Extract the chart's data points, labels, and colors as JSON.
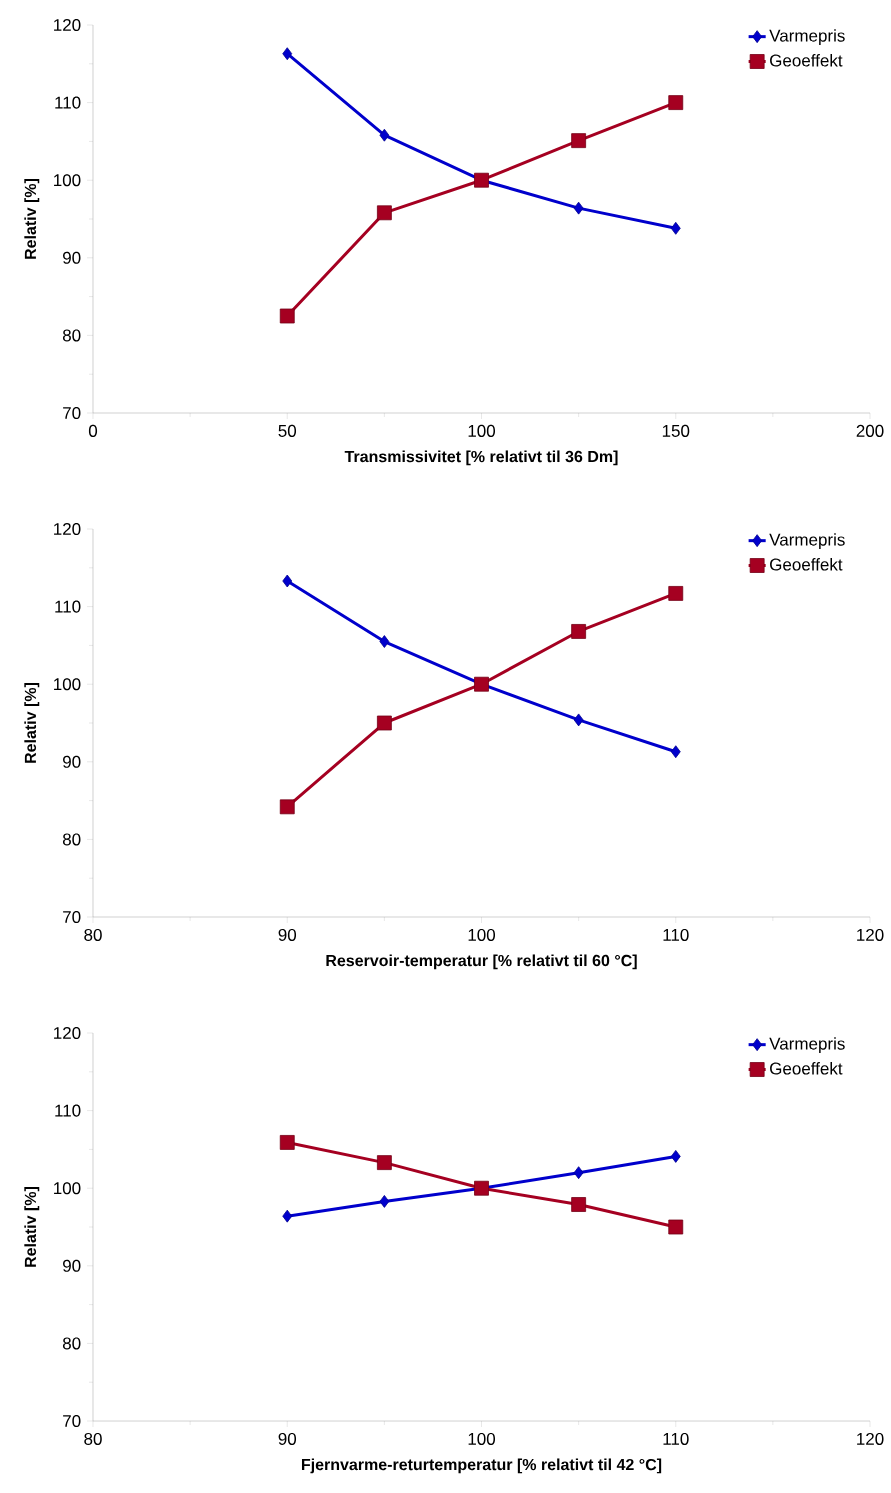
{
  "chart_data": [
    {
      "type": "line",
      "xlabel": "Transmissivitet [%  relativt til 36 Dm]",
      "ylabel": "Relativ  [%]",
      "x": [
        50,
        75,
        100,
        125,
        150
      ],
      "series": [
        {
          "name": "Varmepris",
          "color": "#0000cc",
          "marker": "diamond",
          "values": [
            116.3,
            105.8,
            100,
            96.4,
            93.8
          ]
        },
        {
          "name": "Geoeffekt",
          "color": "#a50021",
          "marker": "square",
          "values": [
            82.5,
            95.8,
            100,
            105.1,
            110
          ]
        }
      ],
      "xlim": [
        0,
        200
      ],
      "xticks": [
        0,
        50,
        100,
        150,
        200
      ],
      "ylim": [
        70,
        120
      ],
      "yticks": [
        70,
        80,
        90,
        100,
        110,
        120
      ],
      "legend": "top right",
      "grid": false
    },
    {
      "type": "line",
      "xlabel": "Reservoir-temperatur [%  relativt til 60 °C]",
      "ylabel": "Relativ  [%]",
      "x": [
        90,
        95,
        100,
        105,
        110
      ],
      "series": [
        {
          "name": "Varmepris",
          "color": "#0000cc",
          "marker": "diamond",
          "values": [
            113.3,
            105.5,
            100,
            95.4,
            91.3
          ]
        },
        {
          "name": "Geoeffekt",
          "color": "#a50021",
          "marker": "square",
          "values": [
            84.2,
            95.0,
            100,
            106.8,
            111.7
          ]
        }
      ],
      "xlim": [
        80,
        120
      ],
      "xticks": [
        80,
        90,
        100,
        110,
        120
      ],
      "ylim": [
        70,
        120
      ],
      "yticks": [
        70,
        80,
        90,
        100,
        110,
        120
      ],
      "legend": "top right",
      "grid": false
    },
    {
      "type": "line",
      "xlabel": "Fjernvarme-returtemperatur [%  relativt til 42 °C]",
      "ylabel": "Relativ  [%]",
      "x": [
        90,
        95,
        100,
        105,
        110
      ],
      "series": [
        {
          "name": "Varmepris",
          "color": "#0000cc",
          "marker": "diamond",
          "values": [
            96.4,
            98.3,
            100,
            102.0,
            104.1
          ]
        },
        {
          "name": "Geoeffekt",
          "color": "#a50021",
          "marker": "square",
          "values": [
            105.9,
            103.3,
            100,
            97.9,
            95.0
          ]
        }
      ],
      "xlim": [
        80,
        120
      ],
      "xticks": [
        80,
        90,
        100,
        110,
        120
      ],
      "ylim": [
        70,
        120
      ],
      "yticks": [
        70,
        80,
        90,
        100,
        110,
        120
      ],
      "legend": "top right",
      "grid": false
    }
  ]
}
